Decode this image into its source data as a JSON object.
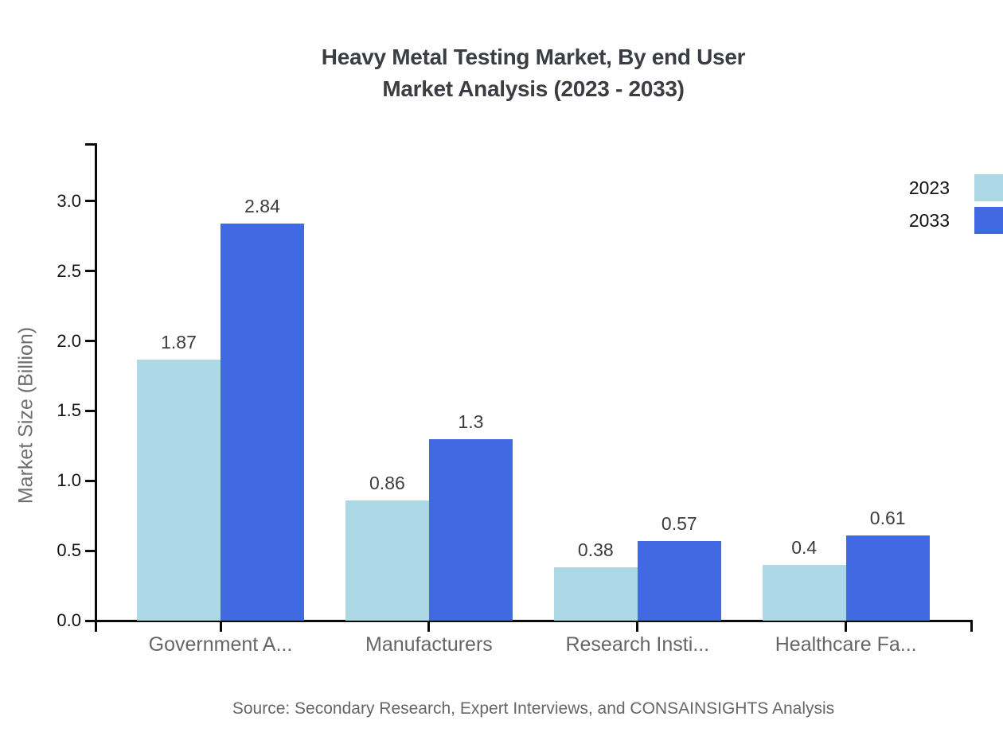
{
  "title": {
    "line1": "Heavy Metal Testing Market, By end User",
    "line2": "Market Analysis (2023 - 2033)"
  },
  "y_axis": {
    "label": "Market Size (Billion)",
    "tick_values": [
      0.0,
      0.5,
      1.0,
      1.5,
      2.0,
      2.5,
      3.0
    ],
    "tick_labels": [
      "0.0",
      "0.5",
      "1.0",
      "1.5",
      "2.0",
      "2.5",
      "3.0"
    ]
  },
  "legend": {
    "items": [
      {
        "label": "2023",
        "color": "#ADD8E6"
      },
      {
        "label": "2033",
        "color": "#4169E1"
      }
    ]
  },
  "source": "Source: Secondary Research, Expert Interviews, and CONSAINSIGHTS Analysis",
  "colors": {
    "series_2023": "#ADD8E6",
    "series_2033": "#4169E1",
    "axis": "#0a0a0a",
    "title_text": "#3a3d42",
    "category_text": "#666666",
    "value_text": "#3d3d3d"
  },
  "chart_data": {
    "type": "bar",
    "categories": [
      "Government A...",
      "Manufacturers",
      "Research Insti...",
      "Healthcare Fa..."
    ],
    "series": [
      {
        "name": "2023",
        "color": "#ADD8E6",
        "values": [
          1.87,
          0.86,
          0.38,
          0.4
        ]
      },
      {
        "name": "2033",
        "color": "#4169E1",
        "values": [
          2.84,
          1.3,
          0.57,
          0.61
        ]
      }
    ],
    "value_labels": [
      [
        "1.87",
        "0.86",
        "0.38",
        "0.4"
      ],
      [
        "2.84",
        "1.3",
        "0.57",
        "0.61"
      ]
    ],
    "title": "Heavy Metal Testing Market, By end User Market Analysis (2023 - 2033)",
    "xlabel": "",
    "ylabel": "Market Size (Billion)",
    "ylim": [
      0,
      3.4
    ],
    "yticks": [
      0.0,
      0.5,
      1.0,
      1.5,
      2.0,
      2.5,
      3.0
    ],
    "grid": false,
    "legend_position": "top-right",
    "bar_value_labels_shown": true
  }
}
